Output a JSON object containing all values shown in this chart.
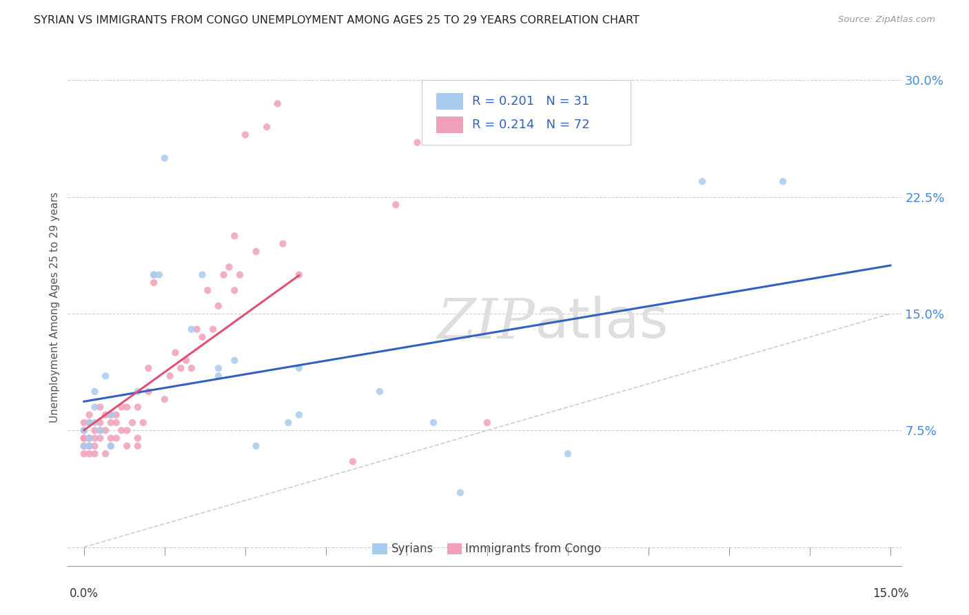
{
  "title": "SYRIAN VS IMMIGRANTS FROM CONGO UNEMPLOYMENT AMONG AGES 25 TO 29 YEARS CORRELATION CHART",
  "source": "Source: ZipAtlas.com",
  "xmin": 0.0,
  "xmax": 0.15,
  "ymin": 0.0,
  "ymax": 0.315,
  "syrians_R": 0.201,
  "syrians_N": 31,
  "congo_R": 0.214,
  "congo_N": 72,
  "syrian_color": "#a8ccee",
  "congo_color": "#f0a0b8",
  "syrian_line_color": "#3060c0",
  "congo_line_color": "#e05070",
  "watermark_color": "#dedede",
  "syrians_x": [
    0.001,
    0.001,
    0.002,
    0.002,
    0.003,
    0.004,
    0.005,
    0.005,
    0.01,
    0.013,
    0.015,
    0.02,
    0.022,
    0.025,
    0.028,
    0.032,
    0.038,
    0.04,
    0.04,
    0.055,
    0.065,
    0.07,
    0.09,
    0.115,
    0.13,
    0.0,
    0.0,
    0.001,
    0.002,
    0.014,
    0.025
  ],
  "syrians_y": [
    0.08,
    0.065,
    0.09,
    0.1,
    0.075,
    0.11,
    0.085,
    0.065,
    0.1,
    0.175,
    0.25,
    0.14,
    0.175,
    0.115,
    0.12,
    0.065,
    0.08,
    0.115,
    0.085,
    0.1,
    0.08,
    0.035,
    0.06,
    0.235,
    0.235,
    0.075,
    0.065,
    0.07,
    0.08,
    0.175,
    0.11
  ],
  "congo_x": [
    0.0,
    0.0,
    0.0,
    0.0,
    0.0,
    0.0,
    0.0,
    0.001,
    0.001,
    0.001,
    0.001,
    0.001,
    0.001,
    0.001,
    0.002,
    0.002,
    0.002,
    0.002,
    0.003,
    0.003,
    0.003,
    0.003,
    0.004,
    0.004,
    0.004,
    0.005,
    0.005,
    0.005,
    0.005,
    0.006,
    0.006,
    0.006,
    0.007,
    0.007,
    0.008,
    0.008,
    0.008,
    0.009,
    0.01,
    0.01,
    0.01,
    0.011,
    0.012,
    0.012,
    0.013,
    0.013,
    0.015,
    0.016,
    0.017,
    0.018,
    0.019,
    0.02,
    0.021,
    0.022,
    0.023,
    0.024,
    0.025,
    0.026,
    0.027,
    0.028,
    0.028,
    0.029,
    0.03,
    0.032,
    0.034,
    0.036,
    0.037,
    0.04,
    0.05,
    0.058,
    0.062,
    0.075
  ],
  "congo_y": [
    0.06,
    0.065,
    0.065,
    0.07,
    0.07,
    0.075,
    0.08,
    0.06,
    0.065,
    0.065,
    0.07,
    0.07,
    0.08,
    0.085,
    0.06,
    0.065,
    0.07,
    0.075,
    0.07,
    0.075,
    0.08,
    0.09,
    0.06,
    0.075,
    0.085,
    0.065,
    0.07,
    0.08,
    0.085,
    0.07,
    0.08,
    0.085,
    0.075,
    0.09,
    0.065,
    0.075,
    0.09,
    0.08,
    0.065,
    0.07,
    0.09,
    0.08,
    0.1,
    0.115,
    0.17,
    0.175,
    0.095,
    0.11,
    0.125,
    0.115,
    0.12,
    0.115,
    0.14,
    0.135,
    0.165,
    0.14,
    0.155,
    0.175,
    0.18,
    0.165,
    0.2,
    0.175,
    0.265,
    0.19,
    0.27,
    0.285,
    0.195,
    0.175,
    0.055,
    0.22,
    0.26,
    0.08
  ]
}
